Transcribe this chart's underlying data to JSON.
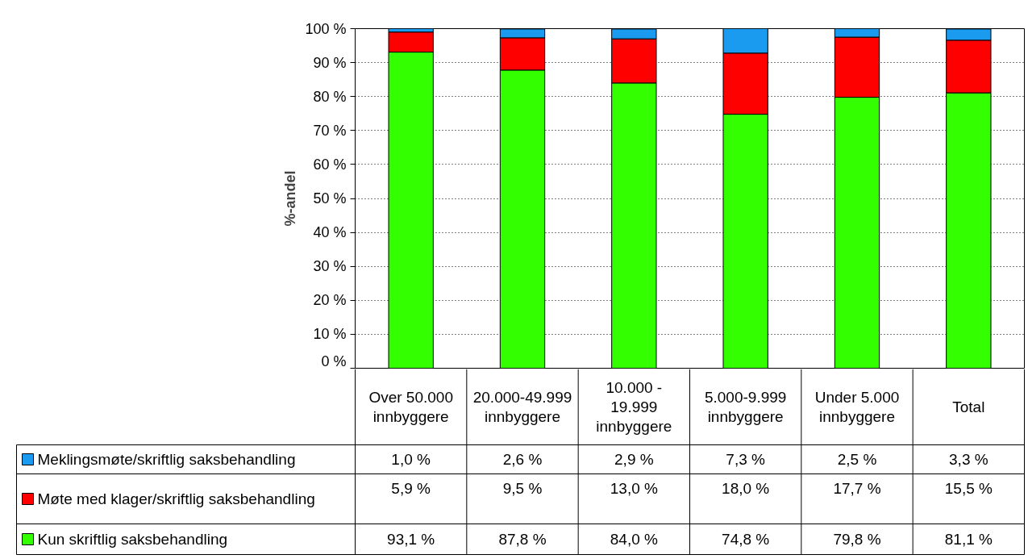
{
  "chart_data": {
    "type": "bar",
    "stacked": true,
    "ylabel": "%-andel",
    "categories": [
      "Over 50.000 innbyggere",
      "20.000-49.999 innbyggere",
      "10.000 - 19.999 innbyggere",
      "5.000-9.999 innbyggere",
      "Under 5.000 innbyggere",
      "Total"
    ],
    "series": [
      {
        "name": "Kun skriftlig saksbehandling",
        "color": "#33ff00",
        "values": [
          93.1,
          87.8,
          84.0,
          74.8,
          79.8,
          81.1
        ],
        "value_labels": [
          "93,1 %",
          "87,8 %",
          "84,0 %",
          "74,8 %",
          "79,8 %",
          "81,1 %"
        ]
      },
      {
        "name": "Møte med klager/skriftlig saksbehandling",
        "color": "#ff0000",
        "values": [
          5.9,
          9.5,
          13.0,
          18.0,
          17.7,
          15.5
        ],
        "value_labels": [
          "5,9 %",
          "9,5 %",
          "13,0 %",
          "18,0 %",
          "17,7 %",
          "15,5 %"
        ]
      },
      {
        "name": "Meklingsmøte/skriftlig saksbehandling",
        "color": "#1a9bf0",
        "values": [
          1.0,
          2.6,
          2.9,
          7.3,
          2.5,
          3.3
        ],
        "value_labels": [
          "1,0 %",
          "2,6 %",
          "2,9 %",
          "7,3 %",
          "2,5 %",
          "3,3 %"
        ]
      }
    ],
    "ylim": [
      0,
      100
    ],
    "yticks": [
      {
        "value": 0,
        "label": "0 %"
      },
      {
        "value": 10,
        "label": "10 %"
      },
      {
        "value": 20,
        "label": "20 %"
      },
      {
        "value": 30,
        "label": "30 %"
      },
      {
        "value": 40,
        "label": "40 %"
      },
      {
        "value": 50,
        "label": "50 %"
      },
      {
        "value": 60,
        "label": "60 %"
      },
      {
        "value": 70,
        "label": "70 %"
      },
      {
        "value": 80,
        "label": "80 %"
      },
      {
        "value": 90,
        "label": "90 %"
      },
      {
        "value": 100,
        "label": "100 %"
      }
    ],
    "grid": "y",
    "legend": "bottom"
  }
}
